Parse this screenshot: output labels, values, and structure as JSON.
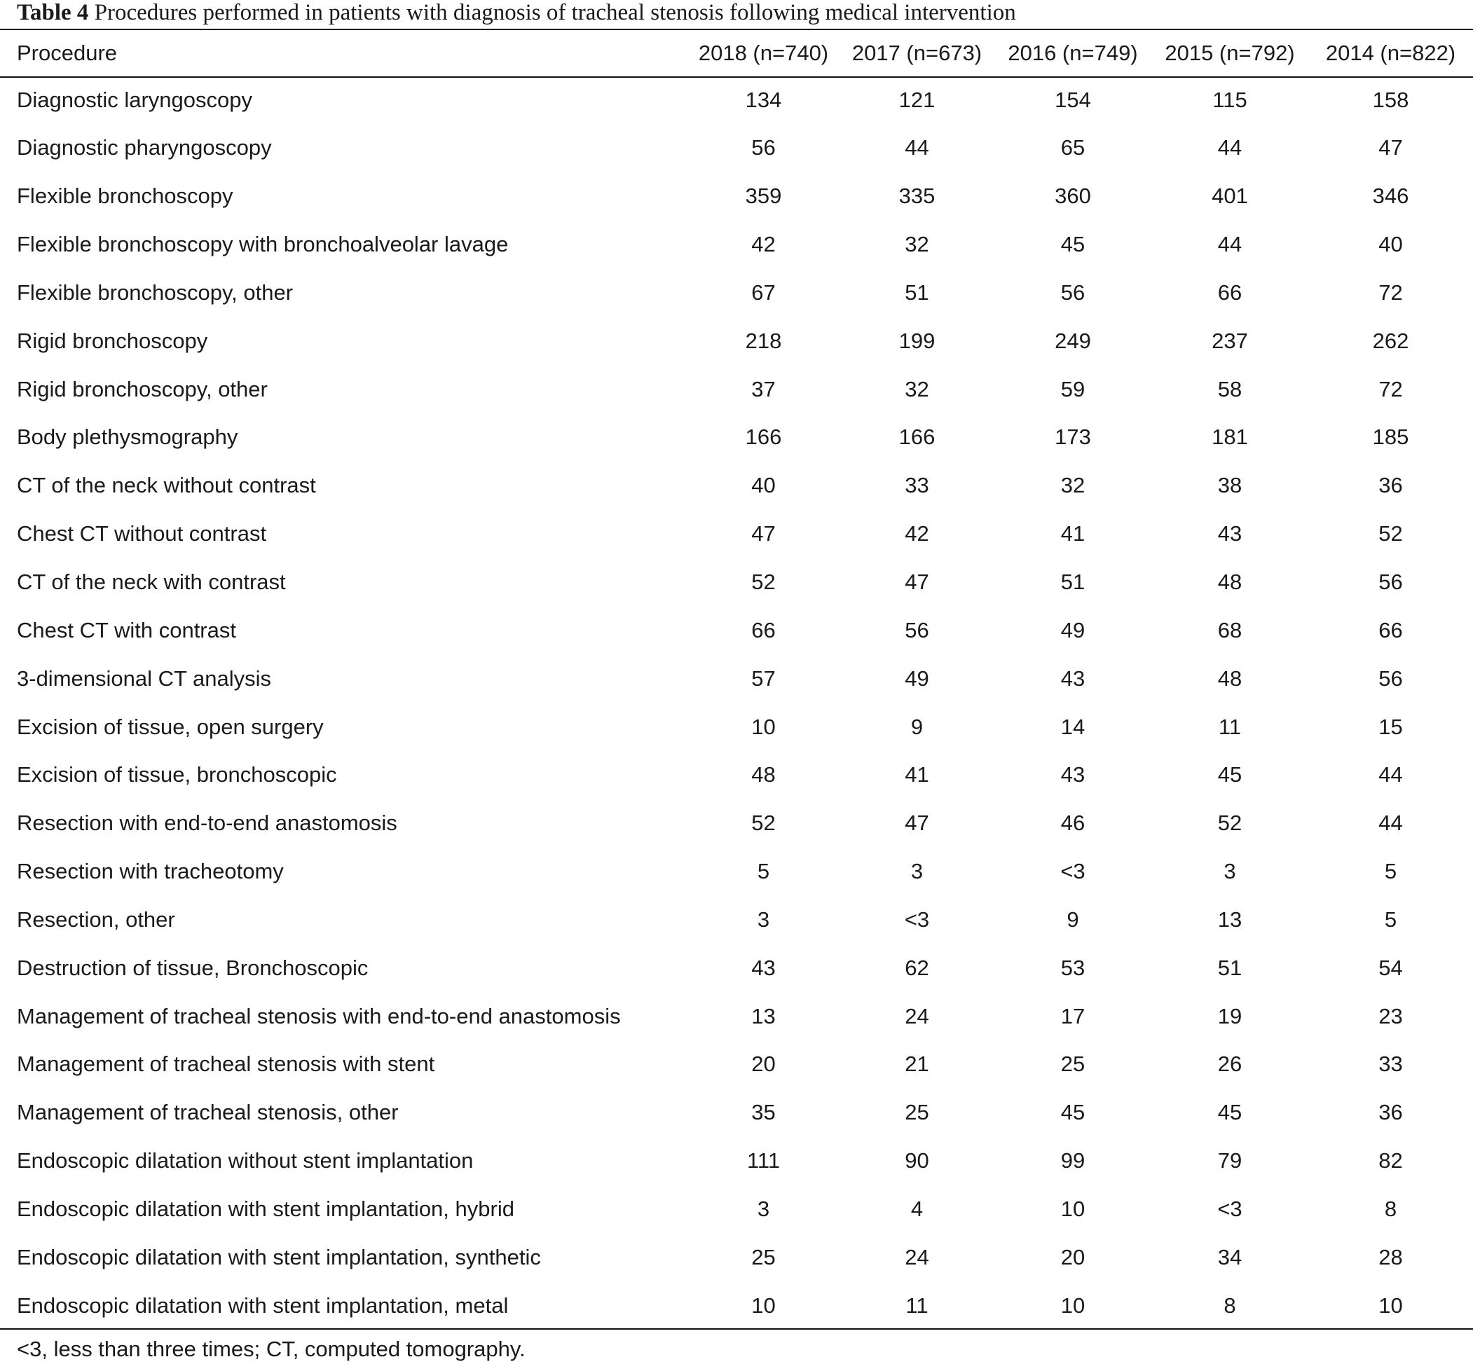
{
  "caption": {
    "label": "Table 4",
    "text": "Procedures performed in patients with diagnosis of tracheal stenosis following medical intervention"
  },
  "table": {
    "headers": [
      "Procedure",
      "2018 (n=740)",
      "2017 (n=673)",
      "2016 (n=749)",
      "2015 (n=792)",
      "2014 (n=822)"
    ],
    "rows": [
      [
        "Diagnostic laryngoscopy",
        "134",
        "121",
        "154",
        "115",
        "158"
      ],
      [
        "Diagnostic pharyngoscopy",
        "56",
        "44",
        "65",
        "44",
        "47"
      ],
      [
        "Flexible bronchoscopy",
        "359",
        "335",
        "360",
        "401",
        "346"
      ],
      [
        "Flexible bronchoscopy with bronchoalveolar lavage",
        "42",
        "32",
        "45",
        "44",
        "40"
      ],
      [
        "Flexible bronchoscopy, other",
        "67",
        "51",
        "56",
        "66",
        "72"
      ],
      [
        "Rigid bronchoscopy",
        "218",
        "199",
        "249",
        "237",
        "262"
      ],
      [
        "Rigid bronchoscopy, other",
        "37",
        "32",
        "59",
        "58",
        "72"
      ],
      [
        "Body plethysmography",
        "166",
        "166",
        "173",
        "181",
        "185"
      ],
      [
        "CT of the neck without contrast",
        "40",
        "33",
        "32",
        "38",
        "36"
      ],
      [
        "Chest CT without contrast",
        "47",
        "42",
        "41",
        "43",
        "52"
      ],
      [
        "CT of the neck with contrast",
        "52",
        "47",
        "51",
        "48",
        "56"
      ],
      [
        "Chest CT with contrast",
        "66",
        "56",
        "49",
        "68",
        "66"
      ],
      [
        "3-dimensional CT analysis",
        "57",
        "49",
        "43",
        "48",
        "56"
      ],
      [
        "Excision of tissue, open surgery",
        "10",
        "9",
        "14",
        "11",
        "15"
      ],
      [
        "Excision of tissue, bronchoscopic",
        "48",
        "41",
        "43",
        "45",
        "44"
      ],
      [
        "Resection with end-to-end anastomosis",
        "52",
        "47",
        "46",
        "52",
        "44"
      ],
      [
        "Resection with tracheotomy",
        "5",
        "3",
        "<3",
        "3",
        "5"
      ],
      [
        "Resection, other",
        "3",
        "<3",
        "9",
        "13",
        "5"
      ],
      [
        "Destruction of tissue, Bronchoscopic",
        "43",
        "62",
        "53",
        "51",
        "54"
      ],
      [
        "Management of tracheal stenosis with end-to-end anastomosis",
        "13",
        "24",
        "17",
        "19",
        "23"
      ],
      [
        "Management of tracheal stenosis with stent",
        "20",
        "21",
        "25",
        "26",
        "33"
      ],
      [
        "Management of tracheal stenosis, other",
        "35",
        "25",
        "45",
        "45",
        "36"
      ],
      [
        "Endoscopic dilatation without stent implantation",
        "111",
        "90",
        "99",
        "79",
        "82"
      ],
      [
        "Endoscopic dilatation with stent implantation, hybrid",
        "3",
        "4",
        "10",
        "<3",
        "8"
      ],
      [
        "Endoscopic dilatation with stent implantation, synthetic",
        "25",
        "24",
        "20",
        "34",
        "28"
      ],
      [
        "Endoscopic dilatation with stent implantation, metal",
        "10",
        "11",
        "10",
        "8",
        "10"
      ]
    ]
  },
  "footnote": "<3, less than three times; CT, computed tomography."
}
